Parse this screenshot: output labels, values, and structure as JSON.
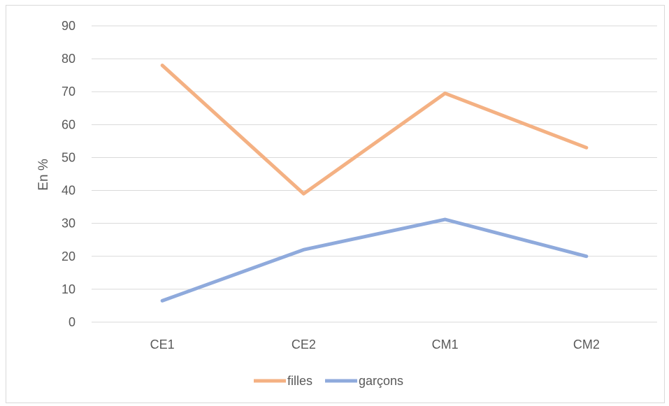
{
  "chart_data": {
    "type": "line",
    "title": "",
    "xlabel": "",
    "ylabel": "En %",
    "ylim": [
      0,
      90
    ],
    "yticks": [
      0,
      10,
      20,
      30,
      40,
      50,
      60,
      70,
      80,
      90
    ],
    "categories": [
      "CE1",
      "CE2",
      "CM1",
      "CM2"
    ],
    "grid": true,
    "legend_position": "bottom",
    "series": [
      {
        "name": "filles",
        "color": "#f4b183",
        "values": [
          78,
          39,
          69.5,
          53
        ]
      },
      {
        "name": "garçons",
        "color": "#8faadc",
        "values": [
          6.5,
          22,
          31.2,
          20
        ]
      }
    ]
  }
}
